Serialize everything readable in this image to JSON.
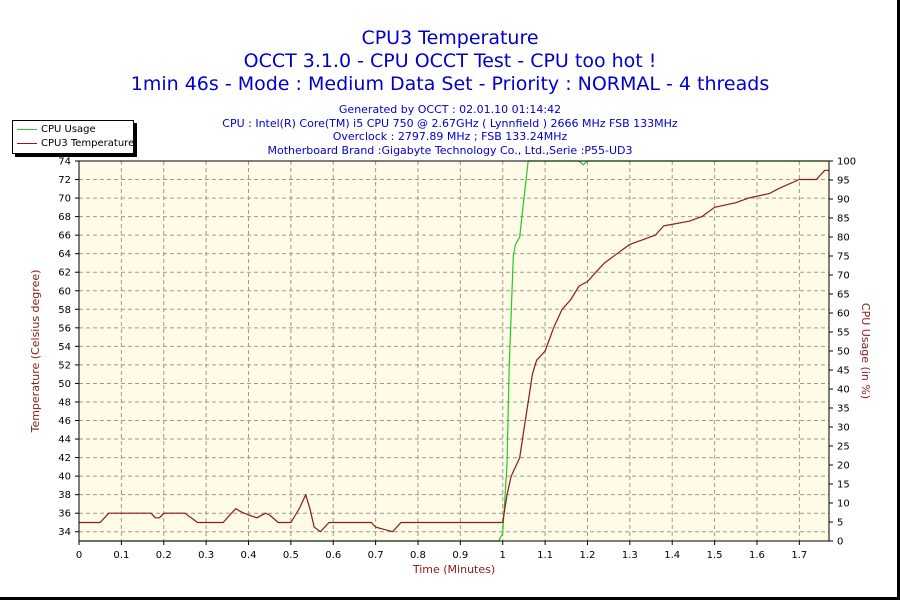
{
  "titles": [
    "CPU3 Temperature",
    "OCCT 3.1.0 - CPU OCCT Test - CPU too hot !",
    "1min 46s - Mode : Medium Data Set - Priority : NORMAL - 4 threads"
  ],
  "info_lines": [
    "Generated by OCCT : 02.01.10 01:14:42",
    "CPU : Intel(R) Core(TM) i5 CPU 750 @ 2.67GHz ( Lynnfield ) 2666 MHz FSB 133MHz",
    "Overclock : 2797.89 MHz ; FSB 133.24MHz",
    "Motherboard Brand :Gigabyte Technology Co., Ltd.,Serie :P55-UD3"
  ],
  "colors": {
    "cpu_usage": "#22cc22",
    "cpu3_temperature": "#8b1a1a",
    "plot_background": "#fffbe6",
    "grid": "#999999"
  },
  "chart_data": {
    "type": "line",
    "title": "CPU3 Temperature",
    "xlabel": "Time (Minutes)",
    "ylabel": "Temperature (Celsius degree)",
    "y2label": "CPU Usage (in %)",
    "xlim": [
      0,
      1.77
    ],
    "ylim": [
      33,
      74
    ],
    "y2lim": [
      0,
      100
    ],
    "x_ticks": [
      "0",
      "0.1",
      "0.2",
      "0.3",
      "0.4",
      "0.5",
      "0.6",
      "0.7",
      "0.8",
      "0.9",
      "1",
      "1.1",
      "1.2",
      "1.3",
      "1.4",
      "1.5",
      "1.6",
      "1.7"
    ],
    "y_ticks": [
      "34",
      "36",
      "38",
      "40",
      "42",
      "44",
      "46",
      "48",
      "50",
      "52",
      "54",
      "56",
      "58",
      "60",
      "62",
      "64",
      "66",
      "68",
      "70",
      "72",
      "74"
    ],
    "y2_ticks": [
      "0",
      "5",
      "10",
      "15",
      "20",
      "25",
      "30",
      "35",
      "40",
      "45",
      "50",
      "55",
      "60",
      "65",
      "70",
      "75",
      "80",
      "85",
      "90",
      "95",
      "100"
    ],
    "grid": true,
    "legend_position": "top-left",
    "series": [
      {
        "name": "CPU Usage",
        "axis": "right",
        "points": [
          [
            0.0,
            0
          ],
          [
            0.99,
            0
          ],
          [
            1.0,
            2
          ],
          [
            1.01,
            20
          ],
          [
            1.015,
            45
          ],
          [
            1.02,
            60
          ],
          [
            1.025,
            75
          ],
          [
            1.03,
            78
          ],
          [
            1.04,
            80
          ],
          [
            1.05,
            90
          ],
          [
            1.06,
            100
          ],
          [
            1.18,
            100
          ],
          [
            1.19,
            99
          ],
          [
            1.2,
            100
          ],
          [
            1.77,
            100
          ]
        ]
      },
      {
        "name": "CPU3 Temperature",
        "axis": "left",
        "points": [
          [
            0.0,
            35
          ],
          [
            0.05,
            35
          ],
          [
            0.07,
            36
          ],
          [
            0.17,
            36
          ],
          [
            0.18,
            35.5
          ],
          [
            0.19,
            35.5
          ],
          [
            0.2,
            36
          ],
          [
            0.25,
            36
          ],
          [
            0.28,
            35
          ],
          [
            0.34,
            35
          ],
          [
            0.36,
            36
          ],
          [
            0.37,
            36.5
          ],
          [
            0.38,
            36.2
          ],
          [
            0.4,
            35.8
          ],
          [
            0.42,
            35.5
          ],
          [
            0.44,
            36
          ],
          [
            0.45,
            35.8
          ],
          [
            0.47,
            35
          ],
          [
            0.5,
            35
          ],
          [
            0.52,
            36.5
          ],
          [
            0.535,
            38
          ],
          [
            0.545,
            36.5
          ],
          [
            0.555,
            34.5
          ],
          [
            0.57,
            34
          ],
          [
            0.59,
            35
          ],
          [
            0.69,
            35
          ],
          [
            0.7,
            34.5
          ],
          [
            0.74,
            34
          ],
          [
            0.76,
            35
          ],
          [
            0.98,
            35
          ],
          [
            1.0,
            35
          ],
          [
            1.01,
            38
          ],
          [
            1.02,
            40
          ],
          [
            1.04,
            42
          ],
          [
            1.05,
            45
          ],
          [
            1.06,
            48
          ],
          [
            1.07,
            51
          ],
          [
            1.08,
            52.5
          ],
          [
            1.1,
            53.5
          ],
          [
            1.12,
            56
          ],
          [
            1.14,
            58
          ],
          [
            1.16,
            59
          ],
          [
            1.18,
            60.5
          ],
          [
            1.2,
            61
          ],
          [
            1.22,
            62
          ],
          [
            1.24,
            63
          ],
          [
            1.27,
            64
          ],
          [
            1.3,
            65
          ],
          [
            1.33,
            65.5
          ],
          [
            1.36,
            66
          ],
          [
            1.38,
            67
          ],
          [
            1.44,
            67.5
          ],
          [
            1.47,
            68
          ],
          [
            1.5,
            69
          ],
          [
            1.55,
            69.5
          ],
          [
            1.58,
            70
          ],
          [
            1.63,
            70.5
          ],
          [
            1.65,
            71
          ],
          [
            1.7,
            72
          ],
          [
            1.74,
            72
          ],
          [
            1.76,
            73
          ],
          [
            1.77,
            73
          ]
        ]
      }
    ]
  }
}
